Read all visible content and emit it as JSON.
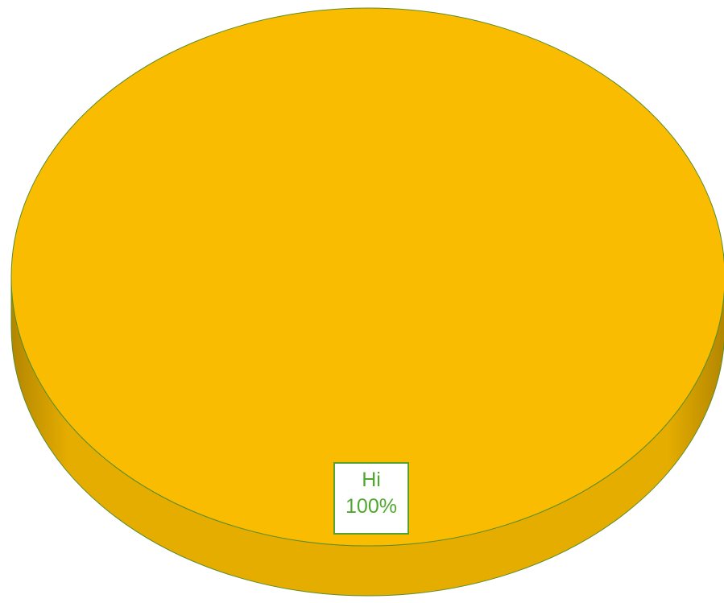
{
  "chart_data": {
    "type": "pie",
    "style": "3d",
    "slices": [
      {
        "label": "Hi",
        "value": 100,
        "percent_label": "100%",
        "color": "#F9BC00"
      }
    ],
    "colors": {
      "top_face": "#F9BC00",
      "side_face_dark": "#B38600",
      "side_face_mid": "#E5AD00",
      "edge": "#5B8C2A",
      "label_border": "#5AA02C",
      "label_text": "#4EA72E"
    },
    "title": "",
    "legend": "none"
  }
}
